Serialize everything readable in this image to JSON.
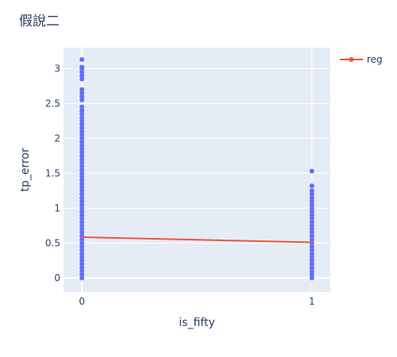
{
  "chart_data": {
    "type": "scatter",
    "title": "假說二",
    "xlabel": "is_fifty",
    "ylabel": "tp_error",
    "x_ticks": [
      "0",
      "1"
    ],
    "y_ticks": [
      "0",
      "0.5",
      "1",
      "1.5",
      "2",
      "2.5",
      "3"
    ],
    "xlim": [
      -0.08,
      1.08
    ],
    "ylim": [
      -0.2,
      3.3
    ],
    "grid": true,
    "legend_position": "top-right",
    "colors": {
      "plot_bg": "#e5ecf6",
      "points": "#636efa",
      "reg": "#ef553b",
      "text": "#2a3f5f"
    },
    "series": [
      {
        "kind": "scatter",
        "x_value": 0,
        "y_values": [
          0.0,
          0.05,
          0.1,
          0.15,
          0.2,
          0.25,
          0.3,
          0.35,
          0.4,
          0.45,
          0.5,
          0.55,
          0.6,
          0.65,
          0.7,
          0.75,
          0.8,
          0.85,
          0.9,
          0.95,
          1.0,
          1.05,
          1.1,
          1.15,
          1.2,
          1.25,
          1.3,
          1.35,
          1.4,
          1.45,
          1.5,
          1.55,
          1.6,
          1.65,
          1.7,
          1.75,
          1.8,
          1.85,
          1.9,
          1.95,
          2.0,
          2.05,
          2.1,
          2.15,
          2.2,
          2.25,
          2.3,
          2.35,
          2.4,
          2.45,
          2.55,
          2.6,
          2.65,
          2.7,
          2.85,
          2.9,
          2.95,
          3.0,
          3.02,
          3.13
        ]
      },
      {
        "kind": "scatter",
        "x_value": 1,
        "y_values": [
          0.0,
          0.05,
          0.1,
          0.15,
          0.2,
          0.25,
          0.3,
          0.35,
          0.4,
          0.45,
          0.5,
          0.55,
          0.6,
          0.65,
          0.7,
          0.75,
          0.8,
          0.85,
          0.9,
          0.95,
          1.0,
          1.05,
          1.1,
          1.15,
          1.2,
          1.25,
          1.32,
          1.53
        ]
      },
      {
        "kind": "line",
        "name": "reg",
        "x": [
          0,
          1
        ],
        "y": [
          0.585,
          0.51
        ]
      }
    ]
  }
}
